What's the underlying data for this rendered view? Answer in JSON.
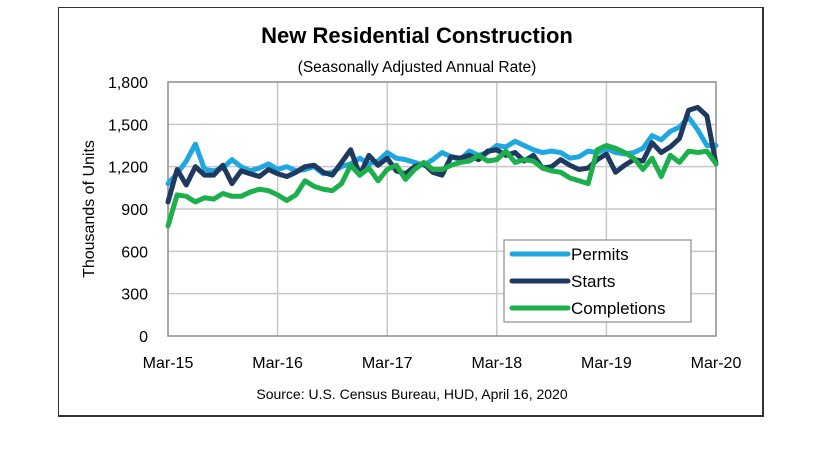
{
  "chart_data": {
    "type": "line",
    "title": "New Residential Construction",
    "subtitle": "(Seasonally Adjusted Annual Rate)",
    "xlabel": "",
    "ylabel": "Thousands of Units",
    "source": "Source:  U.S. Census Bureau, HUD, April 16, 2020",
    "ylim": [
      0,
      1800
    ],
    "yticks": [
      0,
      300,
      600,
      900,
      1200,
      1500,
      1800
    ],
    "ytick_labels": [
      "0",
      "300",
      "600",
      "900",
      "1,200",
      "1,500",
      "1,800"
    ],
    "xtick_labels": [
      "Mar-15",
      "Mar-16",
      "Mar-17",
      "Mar-18",
      "Mar-19",
      "Mar-20"
    ],
    "x_range_months": [
      0,
      60
    ],
    "x_start": "Mar-15",
    "x_end": "Mar-20",
    "grid": true,
    "legend_position": "bottom-right",
    "series": [
      {
        "name": "Permits",
        "color": "#1EA7E1",
        "values": [
          1080,
          1150,
          1240,
          1360,
          1180,
          1170,
          1190,
          1250,
          1200,
          1170,
          1190,
          1220,
          1180,
          1200,
          1170,
          1180,
          1200,
          1150,
          1160,
          1200,
          1220,
          1260,
          1220,
          1240,
          1300,
          1260,
          1250,
          1230,
          1210,
          1250,
          1300,
          1270,
          1250,
          1310,
          1280,
          1300,
          1350,
          1340,
          1380,
          1350,
          1320,
          1300,
          1310,
          1300,
          1260,
          1270,
          1310,
          1300,
          1330,
          1300,
          1290,
          1300,
          1330,
          1420,
          1390,
          1450,
          1480,
          1550,
          1460,
          1350,
          1350
        ]
      },
      {
        "name": "Starts",
        "color": "#1F3A5F",
        "values": [
          950,
          1180,
          1070,
          1200,
          1140,
          1140,
          1210,
          1080,
          1170,
          1150,
          1130,
          1180,
          1150,
          1130,
          1160,
          1200,
          1210,
          1160,
          1140,
          1230,
          1320,
          1140,
          1280,
          1210,
          1260,
          1170,
          1150,
          1200,
          1220,
          1160,
          1140,
          1270,
          1260,
          1280,
          1250,
          1310,
          1320,
          1280,
          1300,
          1240,
          1280,
          1190,
          1200,
          1250,
          1210,
          1180,
          1190,
          1250,
          1290,
          1160,
          1210,
          1250,
          1240,
          1370,
          1300,
          1340,
          1400,
          1600,
          1620,
          1560,
          1220
        ]
      },
      {
        "name": "Completions",
        "color": "#1DAF4B",
        "values": [
          780,
          1000,
          990,
          950,
          980,
          970,
          1010,
          990,
          990,
          1020,
          1040,
          1030,
          1000,
          960,
          1000,
          1100,
          1060,
          1040,
          1030,
          1080,
          1210,
          1140,
          1190,
          1100,
          1180,
          1210,
          1110,
          1180,
          1230,
          1180,
          1180,
          1210,
          1230,
          1240,
          1280,
          1240,
          1250,
          1310,
          1230,
          1250,
          1240,
          1190,
          1170,
          1160,
          1120,
          1100,
          1080,
          1320,
          1350,
          1330,
          1300,
          1260,
          1180,
          1260,
          1130,
          1280,
          1230,
          1310,
          1300,
          1310,
          1220
        ]
      }
    ]
  }
}
